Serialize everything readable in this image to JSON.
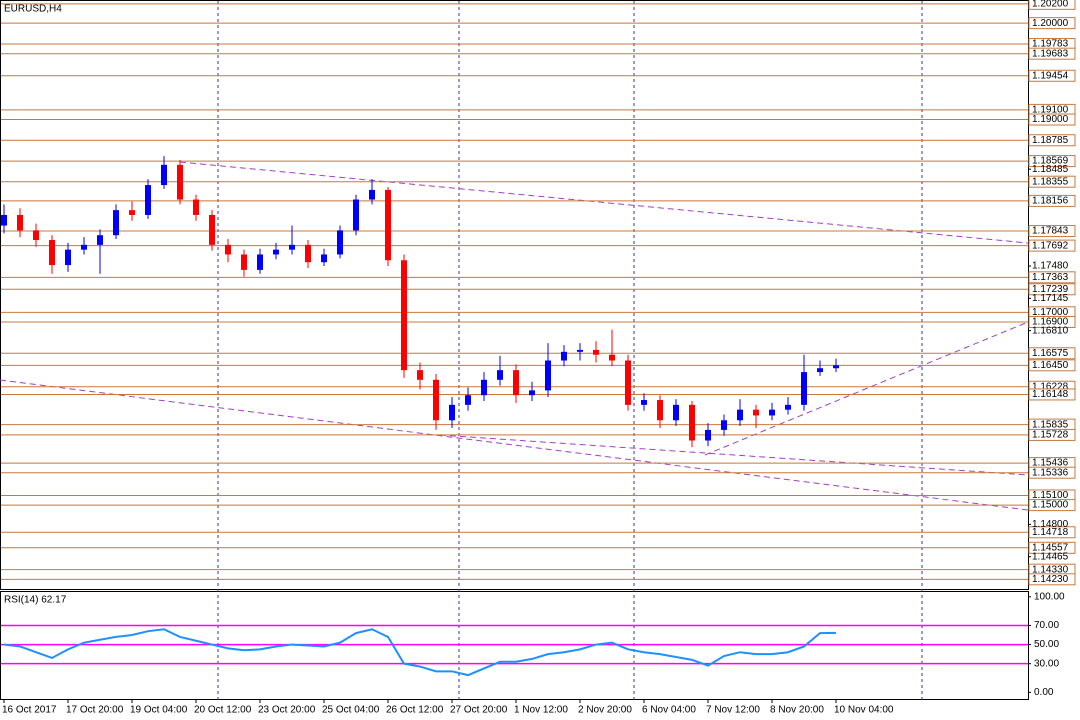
{
  "title": "EURUSD,H4",
  "chart_data": [
    {
      "type": "candlestick",
      "ylim": [
        1.1414,
        1.2024
      ],
      "yticks": [
        {
          "value": 1.18485,
          "label": "1.18485"
        },
        {
          "value": 1.1748,
          "label": "1.17480"
        },
        {
          "value": 1.17145,
          "label": "1.17145"
        },
        {
          "value": 1.1681,
          "label": "1.16810"
        },
        {
          "value": 1.148,
          "label": "1.14800"
        },
        {
          "value": 1.14465,
          "label": "1.14465"
        }
      ],
      "levels": [
        {
          "value": 1.202,
          "label": "1.20200"
        },
        {
          "value": 1.2,
          "label": "1.20000"
        },
        {
          "value": 1.19783,
          "label": "1.19783"
        },
        {
          "value": 1.19683,
          "label": "1.19683"
        },
        {
          "value": 1.19454,
          "label": "1.19454"
        },
        {
          "value": 1.191,
          "label": "1.19100"
        },
        {
          "value": 1.19,
          "label": "1.19000"
        },
        {
          "value": 1.18785,
          "label": "1.18785"
        },
        {
          "value": 1.18569,
          "label": "1.18569"
        },
        {
          "value": 1.18355,
          "label": "1.18355"
        },
        {
          "value": 1.18156,
          "label": "1.18156"
        },
        {
          "value": 1.17843,
          "label": "1.17843"
        },
        {
          "value": 1.17692,
          "label": "1.17692"
        },
        {
          "value": 1.17363,
          "label": "1.17363"
        },
        {
          "value": 1.17239,
          "label": "1.17239"
        },
        {
          "value": 1.17,
          "label": "1.17000"
        },
        {
          "value": 1.169,
          "label": "1.16900"
        },
        {
          "value": 1.16575,
          "label": "1.16575"
        },
        {
          "value": 1.1645,
          "label": "1.16450"
        },
        {
          "value": 1.16228,
          "label": "1.16228"
        },
        {
          "value": 1.16148,
          "label": "1.16148"
        },
        {
          "value": 1.15835,
          "label": "1.15835"
        },
        {
          "value": 1.15728,
          "label": "1.15728"
        },
        {
          "value": 1.15436,
          "label": "1.15436"
        },
        {
          "value": 1.15336,
          "label": "1.15336"
        },
        {
          "value": 1.151,
          "label": "1.15100"
        },
        {
          "value": 1.15,
          "label": "1.15000"
        },
        {
          "value": 1.14718,
          "label": "1.14718"
        },
        {
          "value": 1.14557,
          "label": "1.14557"
        },
        {
          "value": 1.1433,
          "label": "1.14330"
        },
        {
          "value": 1.1423,
          "label": "1.14230"
        }
      ],
      "categories": [
        "16 Oct 2017",
        null,
        null,
        null,
        "17 Oct 20:00",
        null,
        null,
        null,
        "19 Oct 04:00",
        null,
        null,
        null,
        "20 Oct 12:00",
        null,
        null,
        null,
        "23 Oct 20:00",
        null,
        null,
        null,
        "25 Oct 04:00",
        null,
        null,
        null,
        "26 Oct 12:00",
        null,
        null,
        null,
        "27 Oct 20:00",
        null,
        null,
        null,
        "1 Nov 12:00",
        null,
        null,
        null,
        "2 Nov 20:00",
        null,
        null,
        null,
        "6 Nov 04:00",
        null,
        null,
        null,
        "7 Nov 12:00",
        null,
        null,
        null,
        "8 Nov 20:00",
        null,
        null,
        null,
        "10 Nov 04:00"
      ],
      "open": [
        1.179,
        1.1801,
        1.1785,
        1.1775,
        1.1749,
        1.1765,
        1.177,
        1.178,
        1.1806,
        1.1801,
        1.1832,
        1.1853,
        1.1817,
        1.1801,
        1.177,
        1.176,
        1.1744,
        1.176,
        1.1765,
        1.177,
        1.1752,
        1.176,
        1.1785,
        1.1817,
        1.1827,
        1.1754,
        1.164,
        1.163,
        1.1588,
        1.1604,
        1.1614,
        1.163,
        1.164,
        1.1614,
        1.1619,
        1.165,
        1.1659,
        1.1661,
        1.1656,
        1.165,
        1.1604,
        1.1609,
        1.1588,
        1.1604,
        1.1567,
        1.1578,
        1.1588,
        1.1599,
        1.1593,
        1.1599,
        1.1604,
        1.1638,
        1.1642
      ],
      "high": [
        1.1812,
        1.1808,
        1.1792,
        1.178,
        1.1772,
        1.1778,
        1.1786,
        1.1812,
        1.1815,
        1.1838,
        1.1862,
        1.1858,
        1.1822,
        1.1806,
        1.1776,
        1.1765,
        1.1766,
        1.1772,
        1.179,
        1.1775,
        1.1766,
        1.179,
        1.1822,
        1.1838,
        1.183,
        1.176,
        1.1648,
        1.1636,
        1.1612,
        1.1622,
        1.1638,
        1.1655,
        1.1646,
        1.1628,
        1.1668,
        1.1666,
        1.1668,
        1.167,
        1.1682,
        1.1656,
        1.1616,
        1.1614,
        1.161,
        1.1608,
        1.1585,
        1.1594,
        1.161,
        1.1604,
        1.1606,
        1.1612,
        1.1656,
        1.165,
        1.1652
      ],
      "low": [
        1.1782,
        1.1778,
        1.1768,
        1.174,
        1.1742,
        1.176,
        1.174,
        1.1776,
        1.1795,
        1.1797,
        1.1828,
        1.1812,
        1.1795,
        1.1764,
        1.1752,
        1.1737,
        1.174,
        1.1755,
        1.176,
        1.1746,
        1.1748,
        1.1756,
        1.178,
        1.1812,
        1.1748,
        1.1632,
        1.162,
        1.1578,
        1.158,
        1.1598,
        1.1608,
        1.1624,
        1.1606,
        1.1608,
        1.1612,
        1.1644,
        1.165,
        1.1648,
        1.1644,
        1.1598,
        1.1598,
        1.158,
        1.1582,
        1.156,
        1.1561,
        1.1572,
        1.1582,
        1.158,
        1.1588,
        1.1594,
        1.1598,
        1.1634,
        1.1638
      ],
      "close": [
        1.1801,
        1.1785,
        1.1775,
        1.1749,
        1.1765,
        1.177,
        1.178,
        1.1806,
        1.1801,
        1.1832,
        1.1853,
        1.1817,
        1.1801,
        1.177,
        1.176,
        1.1744,
        1.176,
        1.1765,
        1.177,
        1.1752,
        1.176,
        1.1785,
        1.1817,
        1.1827,
        1.1754,
        1.164,
        1.163,
        1.1588,
        1.1604,
        1.1614,
        1.163,
        1.164,
        1.1614,
        1.1619,
        1.165,
        1.1659,
        1.1661,
        1.1656,
        1.165,
        1.1604,
        1.1609,
        1.1588,
        1.1604,
        1.1567,
        1.1578,
        1.1588,
        1.1599,
        1.1593,
        1.1599,
        1.1604,
        1.1638,
        1.1642,
        1.1645
      ],
      "up_color": "#0000ff",
      "down_color": "#ff0000",
      "level_color": "#c8783c"
    },
    {
      "type": "line",
      "title": "RSI(14) 62.17",
      "values": [
        50,
        48,
        42,
        36,
        45,
        52,
        55,
        58,
        60,
        64,
        66,
        58,
        54,
        50,
        46,
        44,
        45,
        48,
        50,
        49,
        48,
        52,
        62,
        66,
        58,
        30,
        27,
        22,
        22,
        18,
        25,
        32,
        32,
        35,
        40,
        42,
        45,
        50,
        52,
        45,
        42,
        40,
        37,
        34,
        28,
        38,
        42,
        40,
        40,
        42,
        48,
        62,
        62.17
      ],
      "ylim": [
        -8,
        105
      ],
      "yticks": [
        {
          "value": 100,
          "label": "100.00"
        },
        {
          "value": 70,
          "label": "70.00"
        },
        {
          "value": 50,
          "label": "50.00"
        },
        {
          "value": 30,
          "label": "30.00"
        },
        {
          "value": 0,
          "label": "0.00"
        }
      ],
      "levels": [
        70,
        50,
        30
      ],
      "color": "#1e90ff",
      "level_color": "#ff00ff"
    }
  ]
}
